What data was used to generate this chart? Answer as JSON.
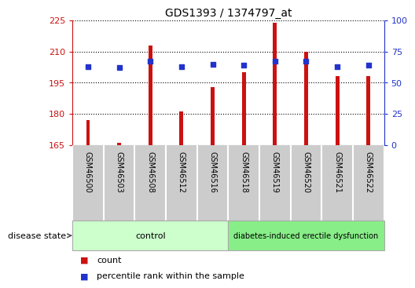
{
  "title": "GDS1393 / 1374797_at",
  "samples": [
    "GSM46500",
    "GSM46503",
    "GSM46508",
    "GSM46512",
    "GSM46516",
    "GSM46518",
    "GSM46519",
    "GSM46520",
    "GSM46521",
    "GSM46522"
  ],
  "counts": [
    177,
    166,
    213,
    181,
    193,
    200,
    224,
    210,
    198,
    198
  ],
  "percentiles": [
    63,
    62,
    67,
    63,
    65,
    64,
    67,
    67,
    63,
    64
  ],
  "ylim_left": [
    165,
    225
  ],
  "ylim_right": [
    0,
    100
  ],
  "yticks_left": [
    165,
    180,
    195,
    210,
    225
  ],
  "yticks_right": [
    0,
    25,
    50,
    75,
    100
  ],
  "n_control": 5,
  "n_disease": 5,
  "bar_color": "#cc1111",
  "dot_color": "#2233cc",
  "grid_color": "#000000",
  "bg_plot": "#ffffff",
  "bg_xtick": "#cccccc",
  "bg_control": "#ccffcc",
  "bg_disease": "#88ee88",
  "control_label": "control",
  "disease_label": "diabetes-induced erectile dysfunction",
  "disease_state_label": "disease state",
  "legend_count": "count",
  "legend_percentile": "percentile rank within the sample",
  "left_axis_color": "#cc1111",
  "right_axis_color": "#2233cc",
  "bar_width": 0.12
}
